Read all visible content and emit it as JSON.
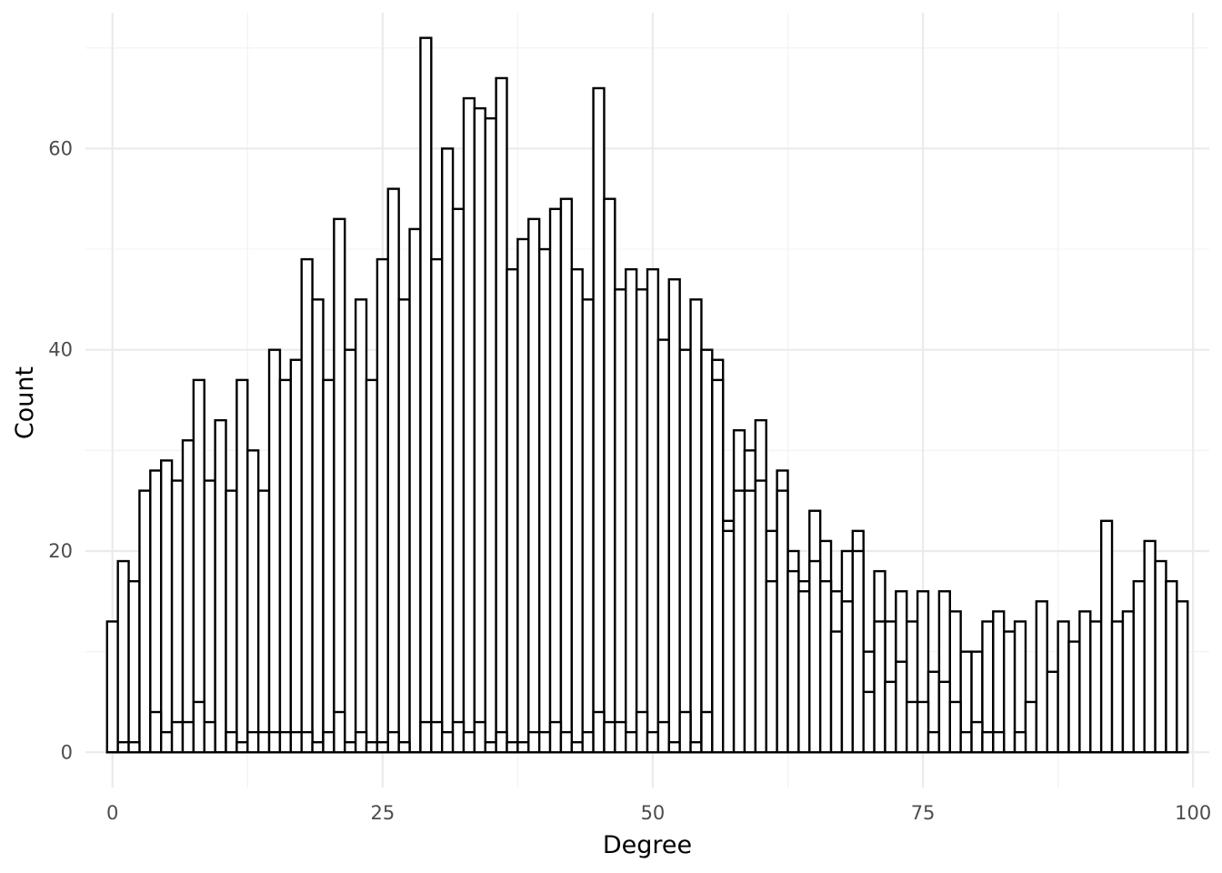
{
  "chart_data": {
    "type": "bar",
    "subtype": "overlaid-histogram",
    "title": "",
    "xlabel": "Degree",
    "ylabel": "Count",
    "xlim": [
      -2.5,
      101.5
    ],
    "ylim": [
      -3.5,
      73.5
    ],
    "x_ticks": [
      0,
      25,
      50,
      75,
      100
    ],
    "x_tick_labels": [
      "0",
      "25",
      "50",
      "75",
      "100"
    ],
    "y_ticks": [
      0,
      20,
      40,
      60
    ],
    "y_tick_labels": [
      "0",
      "20",
      "40",
      "60"
    ],
    "x_minor_ticks": [
      12.5,
      37.5,
      62.5,
      87.5
    ],
    "y_minor_ticks": [
      10,
      30,
      50,
      70
    ],
    "grid": true,
    "legend": "none",
    "bar_fill": "#ffffff",
    "bar_outline": "#000000",
    "bin_width": 1,
    "x": [
      0,
      1,
      2,
      3,
      4,
      5,
      6,
      7,
      8,
      9,
      10,
      11,
      12,
      13,
      14,
      15,
      16,
      17,
      18,
      19,
      20,
      21,
      22,
      23,
      24,
      25,
      26,
      27,
      28,
      29,
      30,
      31,
      32,
      33,
      34,
      35,
      36,
      37,
      38,
      39,
      40,
      41,
      42,
      43,
      44,
      45,
      46,
      47,
      48,
      49,
      50,
      51,
      52,
      53,
      54,
      55,
      56,
      57,
      58,
      59,
      60,
      61,
      62,
      63,
      64,
      65,
      66,
      67,
      68,
      69,
      70,
      71,
      72,
      73,
      74,
      75,
      76,
      77,
      78,
      79,
      80,
      81,
      82,
      83,
      84,
      85,
      86,
      87,
      88,
      89,
      90,
      91,
      92,
      93,
      94,
      95,
      96,
      97,
      98,
      99
    ],
    "series": [
      {
        "values": [
          13,
          19,
          17,
          26,
          28,
          29,
          27,
          31,
          37,
          27,
          33,
          26,
          37,
          30,
          26,
          40,
          37,
          39,
          49,
          45,
          37,
          53,
          40,
          45,
          37,
          49,
          56,
          45,
          52,
          71,
          49,
          60,
          54,
          65,
          64,
          63,
          67,
          48,
          51,
          53,
          50,
          54,
          55,
          48,
          45,
          66,
          55,
          46,
          48,
          46,
          48,
          41,
          47,
          40,
          45,
          40,
          39,
          23,
          32,
          30,
          33,
          22,
          28,
          20,
          17,
          24,
          21,
          16,
          20,
          22,
          10,
          18,
          13,
          16,
          13,
          16,
          8,
          16,
          14,
          10,
          10,
          13,
          14,
          12,
          13,
          5,
          15,
          8,
          13,
          11,
          14,
          13,
          23,
          13,
          14,
          17,
          21,
          19,
          17,
          15
        ]
      },
      {
        "values": [
          0,
          1,
          1,
          0,
          4,
          2,
          3,
          3,
          5,
          3,
          0,
          2,
          1,
          2,
          2,
          2,
          2,
          2,
          2,
          1,
          2,
          4,
          1,
          2,
          1,
          1,
          2,
          1,
          0,
          3,
          3,
          2,
          3,
          2,
          3,
          1,
          2,
          1,
          1,
          2,
          2,
          3,
          2,
          1,
          2,
          4,
          3,
          3,
          2,
          4,
          2,
          3,
          1,
          4,
          1,
          4,
          37,
          22,
          26,
          26,
          27,
          17,
          26,
          18,
          16,
          19,
          17,
          12,
          15,
          20,
          6,
          13,
          7,
          9,
          5,
          5,
          2,
          7,
          5,
          2,
          3,
          2,
          2,
          0,
          2,
          0,
          0,
          0,
          0,
          0,
          0,
          0,
          0,
          0,
          0,
          0,
          0,
          0,
          0,
          0
        ]
      }
    ]
  }
}
